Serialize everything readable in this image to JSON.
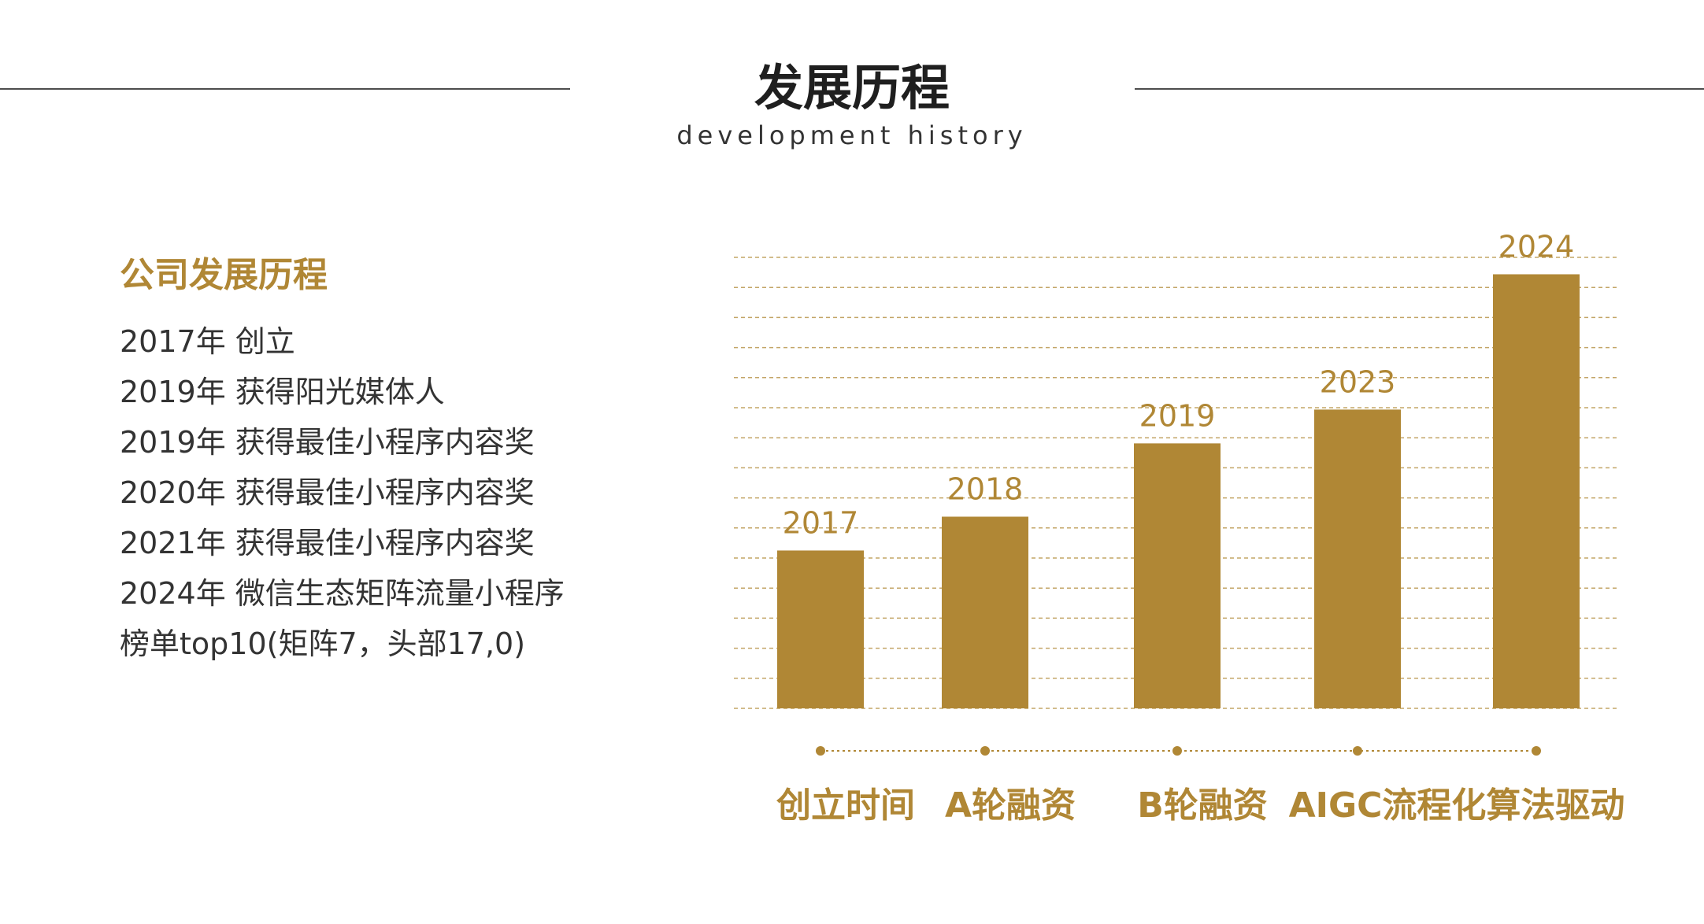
{
  "header": {
    "title": "发展历程",
    "subtitle": "development history"
  },
  "milestones": {
    "heading": "公司发展历程",
    "items": [
      "2017年  创立",
      "2019年  获得阳光媒体人",
      "2019年  获得最佳小程序内容奖",
      "2020年  获得最佳小程序内容奖",
      "2021年  获得最佳小程序内容奖",
      "2024年  微信生态矩阵流量小程序",
      "榜单top10(矩阵7，头部17,0)"
    ]
  },
  "colors": {
    "accent": "#b08735",
    "text": "#333333",
    "title": "#1f1f1f",
    "rule": "#4d4d4d"
  },
  "chart_data": {
    "type": "bar",
    "categories": [
      "创立时间",
      "A轮融资",
      "B轮融资",
      "AIGC流程化算法驱动",
      ""
    ],
    "data_labels": [
      "2017",
      "2018",
      "2019",
      "2023",
      "2024"
    ],
    "values": [
      2.8,
      3.4,
      4.7,
      5.3,
      7.7
    ],
    "ylim": [
      0,
      8
    ],
    "grid": true,
    "grid_style": "dashed"
  }
}
